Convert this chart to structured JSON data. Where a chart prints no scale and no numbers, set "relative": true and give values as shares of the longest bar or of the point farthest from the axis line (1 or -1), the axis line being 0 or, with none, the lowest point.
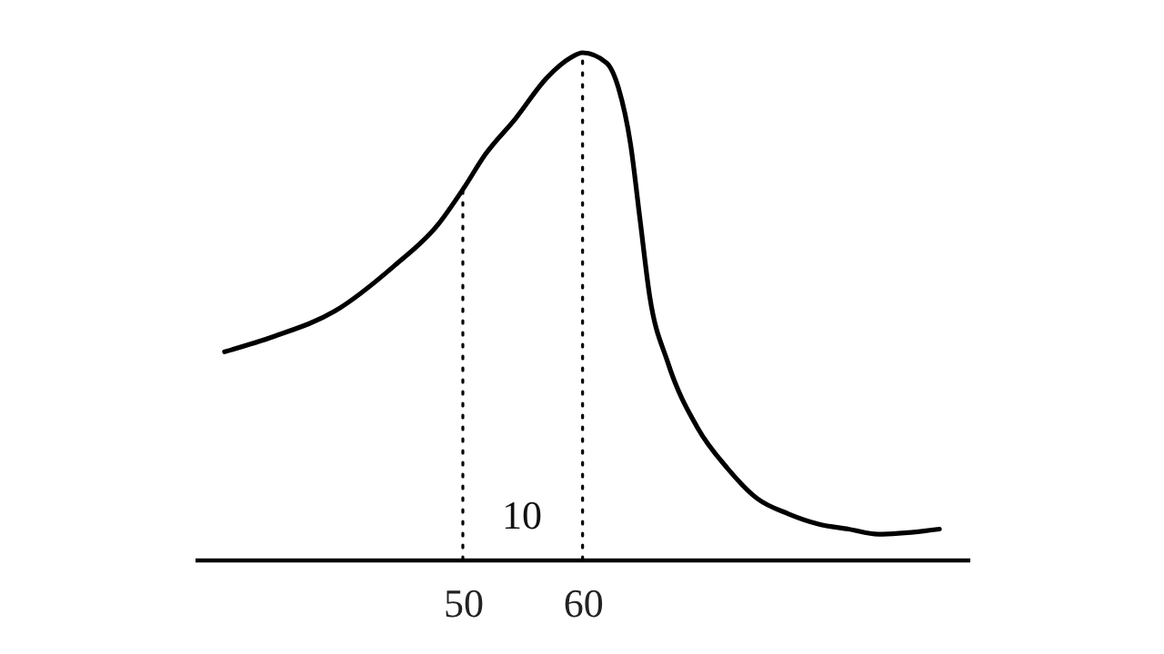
{
  "chart_data": {
    "type": "line",
    "relative": true,
    "x": [
      30.1,
      34.2,
      39.3,
      44.3,
      47.9,
      50,
      51.9,
      54.4,
      57.0,
      59.0,
      60,
      62.0,
      63.0,
      64.0,
      64.8,
      65.6,
      67.1,
      69.6,
      72.1,
      74.6,
      77.2,
      79.7,
      82.2,
      84.7,
      89.8
    ],
    "series": [
      {
        "color": "#000000",
        "values": [
          0.41,
          0.44,
          0.49,
          0.58,
          0.66,
          0.73,
          0.8,
          0.87,
          0.95,
          0.99,
          1,
          0.98,
          0.93,
          0.82,
          0.67,
          0.52,
          0.39,
          0.26,
          0.18,
          0.12,
          0.09,
          0.07,
          0.06,
          0.05,
          0.06
        ]
      }
    ],
    "xlim": [
      27.6,
      92.3
    ],
    "xticks": [
      50,
      60
    ],
    "ref_lines": [
      {
        "axis": "x",
        "value": 50,
        "line_style": "dotted",
        "color": "#000000"
      },
      {
        "axis": "x",
        "value": 60,
        "line_style": "dotted",
        "color": "#000000"
      }
    ],
    "annotations": [
      "10"
    ],
    "grid": false,
    "marker": "none",
    "line_style": "solid"
  }
}
